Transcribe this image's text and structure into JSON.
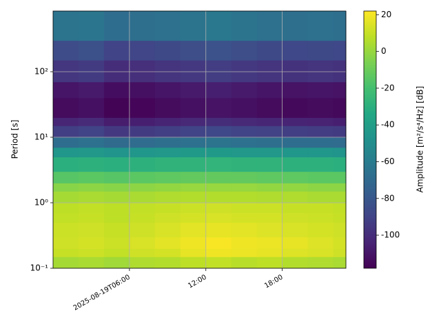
{
  "chart_data": {
    "type": "heatmap",
    "y_label": "Period [s]",
    "colorbar_label": "Amplitude [m²/s⁴/Hz] [dB]",
    "xlim": [
      0,
      23
    ],
    "xticks": [
      {
        "value": 6,
        "label": "2025-08-19T06:00"
      },
      {
        "value": 12,
        "label": "12:00"
      },
      {
        "value": 18,
        "label": "18:00"
      }
    ],
    "ylim": [
      0.1,
      844
    ],
    "yticks": [
      {
        "value": 0.1,
        "label": "10⁻¹"
      },
      {
        "value": 1,
        "label": "10⁰"
      },
      {
        "value": 10,
        "label": "10¹"
      },
      {
        "value": 100,
        "label": "10²"
      }
    ],
    "y_scale": "log",
    "grid": true,
    "colormap": "viridis",
    "clim": [
      -118,
      22
    ],
    "cticks": [
      20,
      0,
      -20,
      -40,
      -60,
      -80,
      -100
    ],
    "x_edges": [
      0,
      2,
      4,
      6,
      8,
      10,
      12,
      14,
      16,
      18,
      20,
      22,
      23
    ],
    "y_edges": [
      0.1,
      0.15,
      0.2,
      0.3,
      0.5,
      0.7,
      1,
      1.5,
      2,
      3,
      5,
      7,
      10,
      15,
      20,
      40,
      70,
      150,
      300,
      844
    ],
    "z": [
      [
        3,
        4,
        2,
        5,
        6,
        8,
        9,
        7,
        8,
        6,
        5,
        4
      ],
      [
        10,
        11,
        9,
        12,
        13,
        17,
        19,
        18,
        17,
        15,
        14,
        12
      ],
      [
        12,
        13,
        11,
        14,
        16,
        19,
        21,
        19,
        18,
        17,
        15,
        13
      ],
      [
        11,
        12,
        10,
        12,
        14,
        16,
        17,
        16,
        15,
        14,
        13,
        12
      ],
      [
        9,
        10,
        8,
        10,
        12,
        13,
        14,
        13,
        13,
        12,
        11,
        10
      ],
      [
        8,
        9,
        8,
        9,
        10,
        11,
        12,
        11,
        11,
        10,
        10,
        9
      ],
      [
        3,
        4,
        3,
        4,
        5,
        6,
        6,
        6,
        5,
        5,
        4,
        4
      ],
      [
        -3,
        -2,
        -3,
        -2,
        -1,
        0,
        0,
        0,
        -1,
        -1,
        -2,
        -2
      ],
      [
        -15,
        -14,
        -15,
        -14,
        -13,
        -12,
        -12,
        -12,
        -13,
        -13,
        -14,
        -14
      ],
      [
        -30,
        -29,
        -30,
        -29,
        -28,
        -28,
        -27,
        -28,
        -28,
        -29,
        -29,
        -30
      ],
      [
        -45,
        -44,
        -46,
        -45,
        -44,
        -43,
        -43,
        -44,
        -44,
        -45,
        -45,
        -46
      ],
      [
        -68,
        -66,
        -70,
        -69,
        -67,
        -66,
        -65,
        -66,
        -67,
        -68,
        -68,
        -69
      ],
      [
        -92,
        -90,
        -95,
        -94,
        -92,
        -90,
        -88,
        -90,
        -91,
        -92,
        -93,
        -94
      ],
      [
        -103,
        -101,
        -107,
        -106,
        -104,
        -102,
        -100,
        -102,
        -103,
        -104,
        -105,
        -106
      ],
      [
        -114,
        -112,
        -117,
        -116,
        -114,
        -112,
        -111,
        -112,
        -114,
        -115,
        -114,
        -115
      ],
      [
        -110,
        -108,
        -113,
        -112,
        -110,
        -108,
        -106,
        -108,
        -110,
        -111,
        -110,
        -111
      ],
      [
        -96,
        -94,
        -100,
        -99,
        -97,
        -95,
        -93,
        -95,
        -97,
        -98,
        -97,
        -98
      ],
      [
        -86,
        -84,
        -90,
        -89,
        -87,
        -85,
        -83,
        -85,
        -87,
        -88,
        -87,
        -88
      ],
      [
        -65,
        -63,
        -68,
        -67,
        -66,
        -64,
        -62,
        -64,
        -66,
        -67,
        -66,
        -67
      ]
    ]
  }
}
